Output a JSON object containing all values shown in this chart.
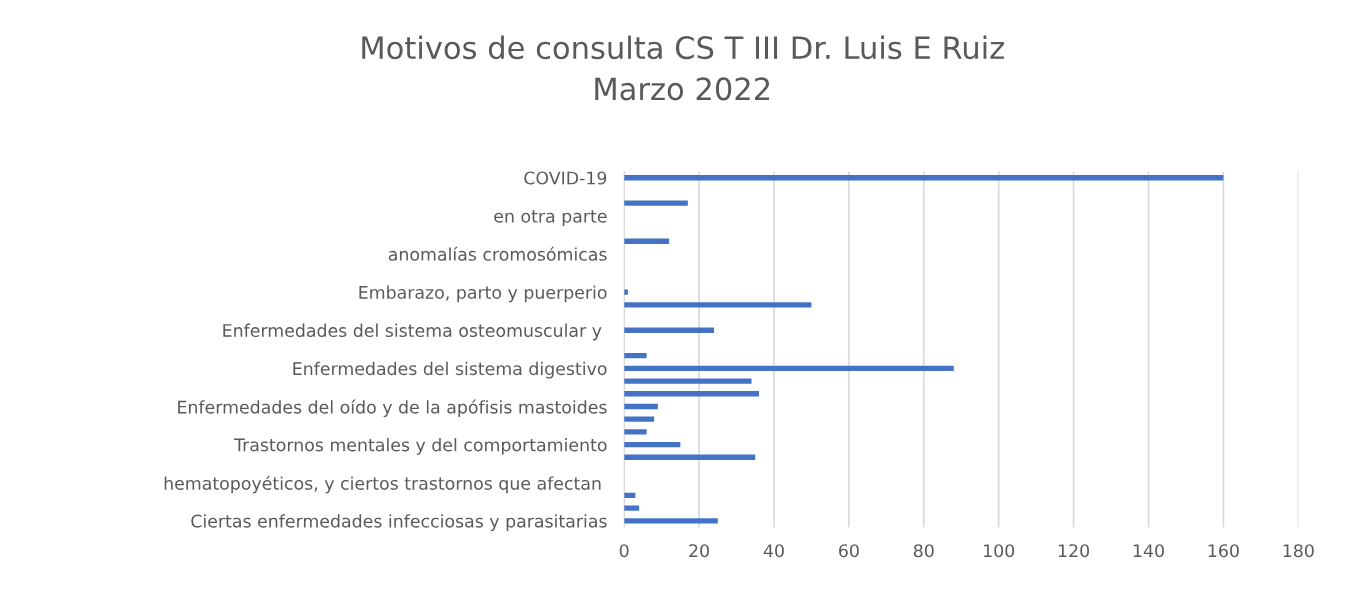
{
  "chart_data": {
    "type": "bar",
    "orientation": "horizontal",
    "title": "Motivos de consulta CS T III Dr. Luis E Ruiz\nMarzo 2022",
    "categories": [
      "COVID-19",
      null,
      null,
      "en otra parte",
      null,
      null,
      "anomalías cromosómicas",
      null,
      null,
      "Embarazo, parto y puerperio",
      null,
      null,
      "Enfermedades del sistema osteomuscular y ",
      null,
      null,
      "Enfermedades del sistema digestivo",
      null,
      null,
      "Enfermedades del oído y de la apófisis mastoides",
      null,
      null,
      "Trastornos mentales y del comportamiento",
      null,
      null,
      "hematopoyéticos, y ciertos trastornos que afectan ",
      null,
      null,
      "Ciertas enfermedades infecciosas y parasitarias"
    ],
    "values": [
      160,
      0,
      17,
      0,
      0,
      12,
      0,
      0,
      0,
      1,
      50,
      0,
      24,
      0,
      6,
      88,
      34,
      36,
      9,
      8,
      6,
      15,
      35,
      0,
      0,
      3,
      4,
      25
    ],
    "color": "#4472c4",
    "xlim": [
      0,
      180
    ],
    "xticks": [
      0,
      20,
      40,
      60,
      80,
      100,
      120,
      140,
      160,
      180
    ],
    "grid": "x"
  }
}
